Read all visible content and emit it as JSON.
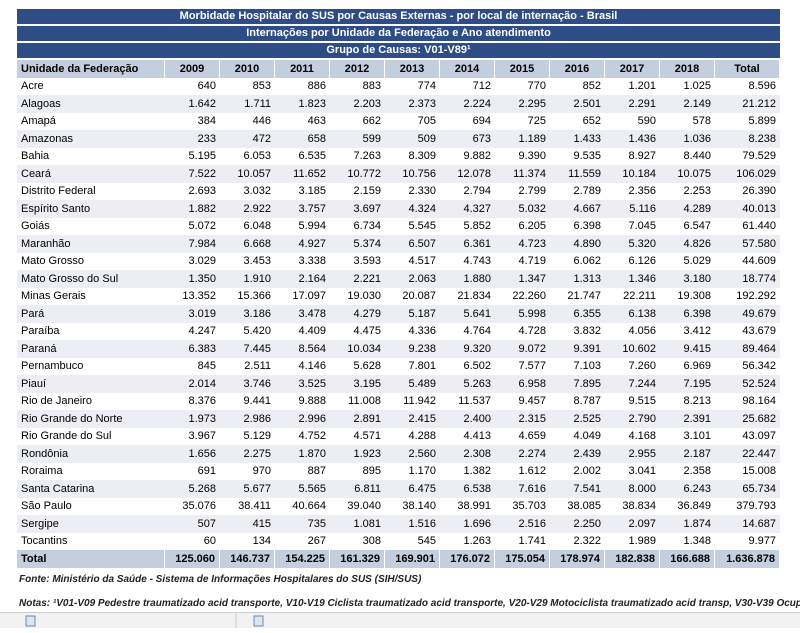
{
  "title_rows": [
    "Morbidade Hospitalar do SUS por Causas Externas - por local de internação - Brasil",
    "Internações por Unidade da Federação e Ano atendimento",
    "Grupo de Causas: V01-V89¹"
  ],
  "table": {
    "header": [
      "Unidade da Federação",
      "2009",
      "2010",
      "2011",
      "2012",
      "2013",
      "2014",
      "2015",
      "2016",
      "2017",
      "2018",
      "Total"
    ],
    "rows": [
      [
        "Acre",
        "640",
        "853",
        "886",
        "883",
        "774",
        "712",
        "770",
        "852",
        "1.201",
        "1.025",
        "8.596"
      ],
      [
        "Alagoas",
        "1.642",
        "1.711",
        "1.823",
        "2.203",
        "2.373",
        "2.224",
        "2.295",
        "2.501",
        "2.291",
        "2.149",
        "21.212"
      ],
      [
        "Amapá",
        "384",
        "446",
        "463",
        "662",
        "705",
        "694",
        "725",
        "652",
        "590",
        "578",
        "5.899"
      ],
      [
        "Amazonas",
        "233",
        "472",
        "658",
        "599",
        "509",
        "673",
        "1.189",
        "1.433",
        "1.436",
        "1.036",
        "8.238"
      ],
      [
        "Bahia",
        "5.195",
        "6.053",
        "6.535",
        "7.263",
        "8.309",
        "9.882",
        "9.390",
        "9.535",
        "8.927",
        "8.440",
        "79.529"
      ],
      [
        "Ceará",
        "7.522",
        "10.057",
        "11.652",
        "10.772",
        "10.756",
        "12.078",
        "11.374",
        "11.559",
        "10.184",
        "10.075",
        "106.029"
      ],
      [
        "Distrito Federal",
        "2.693",
        "3.032",
        "3.185",
        "2.159",
        "2.330",
        "2.794",
        "2.799",
        "2.789",
        "2.356",
        "2.253",
        "26.390"
      ],
      [
        "Espírito Santo",
        "1.882",
        "2.922",
        "3.757",
        "3.697",
        "4.324",
        "4.327",
        "5.032",
        "4.667",
        "5.116",
        "4.289",
        "40.013"
      ],
      [
        "Goiás",
        "5.072",
        "6.048",
        "5.994",
        "6.734",
        "5.545",
        "5.852",
        "6.205",
        "6.398",
        "7.045",
        "6.547",
        "61.440"
      ],
      [
        "Maranhão",
        "7.984",
        "6.668",
        "4.927",
        "5.374",
        "6.507",
        "6.361",
        "4.723",
        "4.890",
        "5.320",
        "4.826",
        "57.580"
      ],
      [
        "Mato Grosso",
        "3.029",
        "3.453",
        "3.338",
        "3.593",
        "4.517",
        "4.743",
        "4.719",
        "6.062",
        "6.126",
        "5.029",
        "44.609"
      ],
      [
        "Mato Grosso do Sul",
        "1.350",
        "1.910",
        "2.164",
        "2.221",
        "2.063",
        "1.880",
        "1.347",
        "1.313",
        "1.346",
        "3.180",
        "18.774"
      ],
      [
        "Minas Gerais",
        "13.352",
        "15.366",
        "17.097",
        "19.030",
        "20.087",
        "21.834",
        "22.260",
        "21.747",
        "22.211",
        "19.308",
        "192.292"
      ],
      [
        "Pará",
        "3.019",
        "3.186",
        "3.478",
        "4.279",
        "5.187",
        "5.641",
        "5.998",
        "6.355",
        "6.138",
        "6.398",
        "49.679"
      ],
      [
        "Paraíba",
        "4.247",
        "5.420",
        "4.409",
        "4.475",
        "4.336",
        "4.764",
        "4.728",
        "3.832",
        "4.056",
        "3.412",
        "43.679"
      ],
      [
        "Paraná",
        "6.383",
        "7.445",
        "8.564",
        "10.034",
        "9.238",
        "9.320",
        "9.072",
        "9.391",
        "10.602",
        "9.415",
        "89.464"
      ],
      [
        "Pernambuco",
        "845",
        "2.511",
        "4.146",
        "5.628",
        "7.801",
        "6.502",
        "7.577",
        "7.103",
        "7.260",
        "6.969",
        "56.342"
      ],
      [
        "Piauí",
        "2.014",
        "3.746",
        "3.525",
        "3.195",
        "5.489",
        "5.263",
        "6.958",
        "7.895",
        "7.244",
        "7.195",
        "52.524"
      ],
      [
        "Rio de Janeiro",
        "8.376",
        "9.441",
        "9.888",
        "11.008",
        "11.942",
        "11.537",
        "9.457",
        "8.787",
        "9.515",
        "8.213",
        "98.164"
      ],
      [
        "Rio Grande do Norte",
        "1.973",
        "2.986",
        "2.996",
        "2.891",
        "2.415",
        "2.400",
        "2.315",
        "2.525",
        "2.790",
        "2.391",
        "25.682"
      ],
      [
        "Rio Grande do Sul",
        "3.967",
        "5.129",
        "4.752",
        "4.571",
        "4.288",
        "4.413",
        "4.659",
        "4.049",
        "4.168",
        "3.101",
        "43.097"
      ],
      [
        "Rondônia",
        "1.656",
        "2.275",
        "1.870",
        "1.923",
        "2.560",
        "2.308",
        "2.274",
        "2.439",
        "2.955",
        "2.187",
        "22.447"
      ],
      [
        "Roraima",
        "691",
        "970",
        "887",
        "895",
        "1.170",
        "1.382",
        "1.612",
        "2.002",
        "3.041",
        "2.358",
        "15.008"
      ],
      [
        "Santa Catarina",
        "5.268",
        "5.677",
        "5.565",
        "6.811",
        "6.475",
        "6.538",
        "7.616",
        "7.541",
        "8.000",
        "6.243",
        "65.734"
      ],
      [
        "São Paulo",
        "35.076",
        "38.411",
        "40.664",
        "39.040",
        "38.140",
        "38.991",
        "35.703",
        "38.085",
        "38.834",
        "36.849",
        "379.793"
      ],
      [
        "Sergipe",
        "507",
        "415",
        "735",
        "1.081",
        "1.516",
        "1.696",
        "2.516",
        "2.250",
        "2.097",
        "1.874",
        "14.687"
      ],
      [
        "Tocantins",
        "60",
        "134",
        "267",
        "308",
        "545",
        "1.263",
        "1.741",
        "2.322",
        "1.989",
        "1.348",
        "9.977"
      ]
    ],
    "total": [
      "Total",
      "125.060",
      "146.737",
      "154.225",
      "161.329",
      "169.901",
      "176.072",
      "175.054",
      "178.974",
      "182.838",
      "166.688",
      "1.636.878"
    ]
  },
  "source": "Fonte: Ministério da Saúde - Sistema de Informações Hospitalares do SUS (SIH/SUS)",
  "notes": "Notas: ¹V01-V09 Pedestre traumatizado acid transporte, V10-V19 Ciclista traumatizado acid transporte, V20-V29 Motociclista traumatizado acid transp, V30-V39 Ocup"
}
